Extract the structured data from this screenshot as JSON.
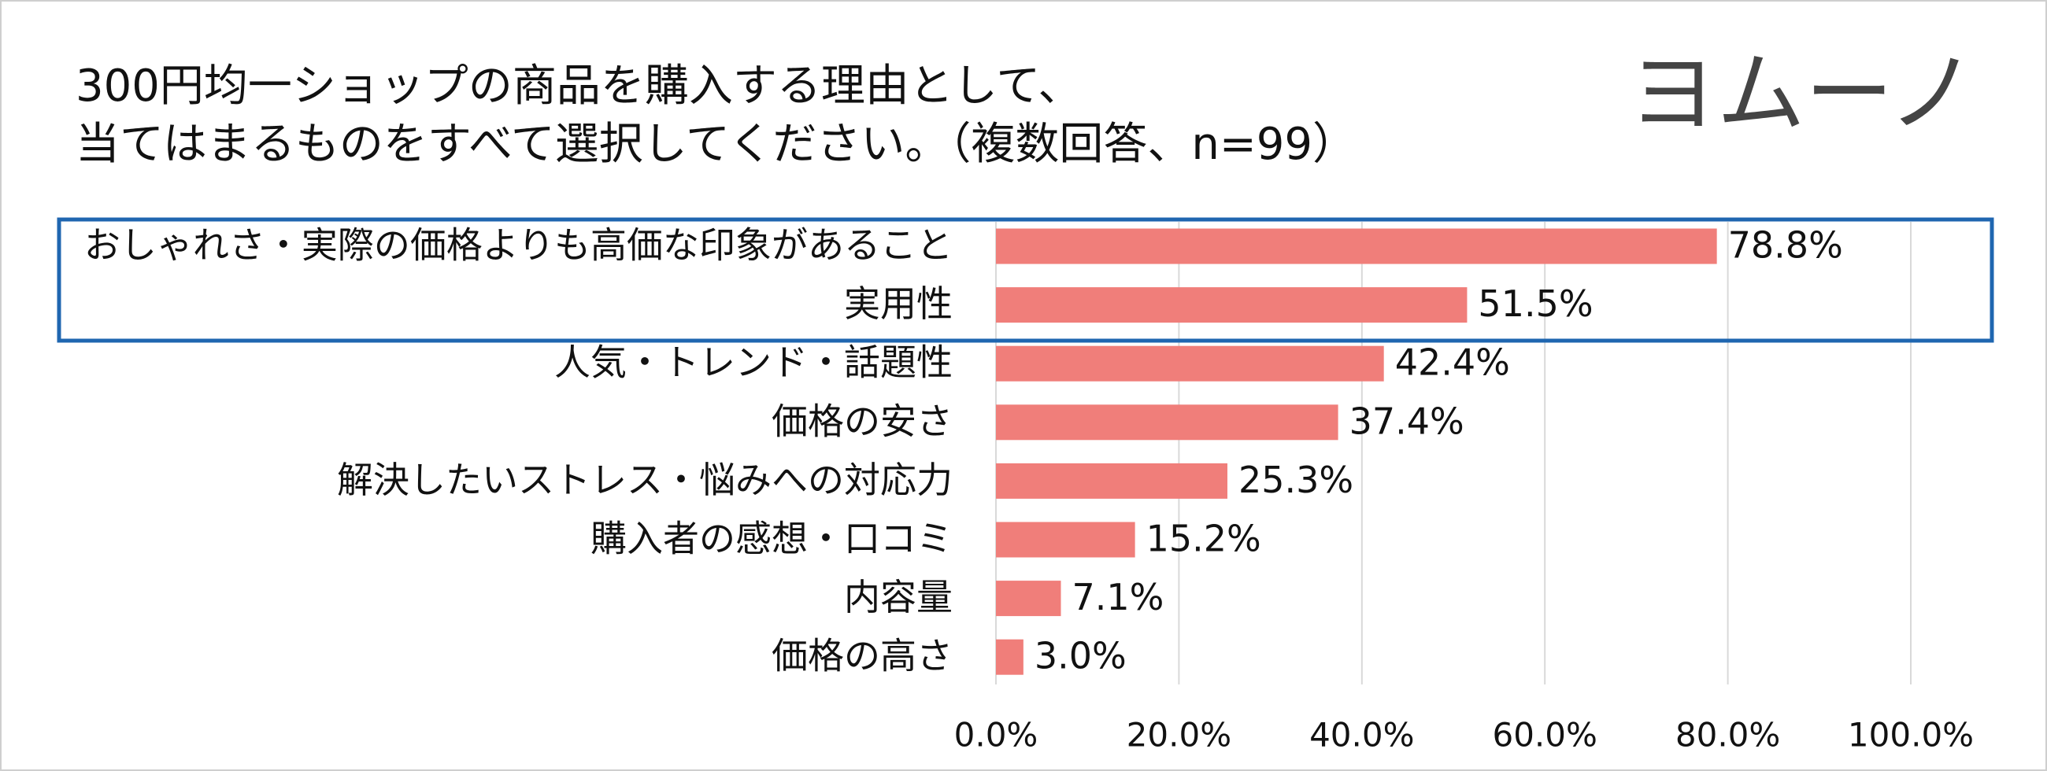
{
  "chart_data": {
    "type": "hbar",
    "title_lines": [
      "300円均一ショップの商品を購入する理由として、",
      "当てはまるものをすべて選択してください。（複数回答、n=99）"
    ],
    "logo": "ヨムーノ",
    "categories": [
      "おしゃれさ・実際の価格よりも高価な印象があること",
      "実用性",
      "人気・トレンド・話題性",
      "価格の安さ",
      "解決したいストレス・悩みへの対応力",
      "購入者の感想・口コミ",
      "内容量",
      "価格の高さ"
    ],
    "values": [
      78.8,
      51.5,
      42.4,
      37.4,
      25.3,
      15.2,
      7.1,
      3.0
    ],
    "value_labels": [
      "78.8%",
      "51.5%",
      "42.4%",
      "37.4%",
      "25.3%",
      "15.2%",
      "7.1%",
      "3.0%"
    ],
    "color": "#f07e7a",
    "xlim": [
      0,
      100
    ],
    "xticks": [
      {
        "value": 0,
        "label": "0.0%"
      },
      {
        "value": 20,
        "label": "20.0%"
      },
      {
        "value": 40,
        "label": "40.0%"
      },
      {
        "value": 60,
        "label": "60.0%"
      },
      {
        "value": 80,
        "label": "80.0%"
      },
      {
        "value": 100,
        "label": "100.0%"
      }
    ],
    "grid": true
  }
}
